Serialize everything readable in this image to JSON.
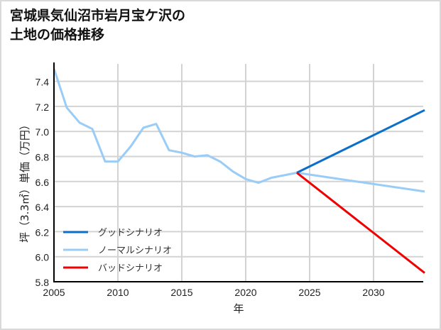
{
  "title_line1": "宮城県気仙沼市岩月宝ケ沢の",
  "title_line2": "土地の価格推移",
  "chart_data": {
    "type": "line",
    "title": "宮城県気仙沼市岩月宝ケ沢の土地の価格推移",
    "xlabel": "年",
    "ylabel": "坪（3.3㎡）単価（万円）",
    "xlim": [
      2005,
      2034
    ],
    "ylim": [
      5.8,
      7.55
    ],
    "xticks": [
      2005,
      2010,
      2015,
      2020,
      2025,
      2030
    ],
    "yticks": [
      5.8,
      6.0,
      6.2,
      6.4,
      6.6,
      6.8,
      7.0,
      7.2,
      7.4
    ],
    "grid": true,
    "legend_position": "lower left",
    "series": [
      {
        "name": "グッドシナリオ",
        "color": "#0a6fc8",
        "x": [
          2024,
          2034
        ],
        "values": [
          6.67,
          7.17
        ]
      },
      {
        "name": "ノーマルシナリオ",
        "color": "#99ccf7",
        "x": [
          2005,
          2006,
          2007,
          2008,
          2009,
          2010,
          2011,
          2012,
          2013,
          2014,
          2015,
          2016,
          2017,
          2018,
          2019,
          2020,
          2021,
          2022,
          2023,
          2024,
          2034
        ],
        "values": [
          7.5,
          7.19,
          7.07,
          7.02,
          6.76,
          6.76,
          6.88,
          7.03,
          7.06,
          6.85,
          6.83,
          6.8,
          6.81,
          6.76,
          6.68,
          6.62,
          6.59,
          6.63,
          6.65,
          6.67,
          6.52
        ]
      },
      {
        "name": "バッドシナリオ",
        "color": "#f00000",
        "x": [
          2024,
          2034
        ],
        "values": [
          6.67,
          5.87
        ]
      }
    ]
  }
}
